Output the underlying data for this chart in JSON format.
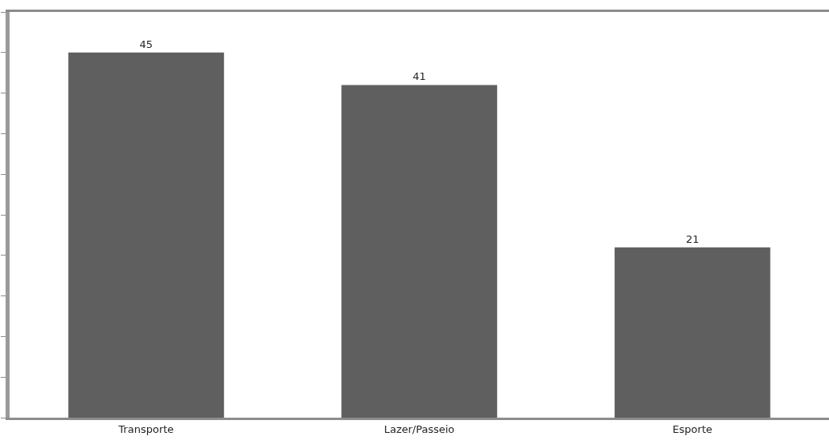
{
  "chart_data": {
    "type": "bar",
    "categories": [
      "Transporte",
      "Lazer/Passeio",
      "Esporte"
    ],
    "values": [
      45,
      41,
      21
    ],
    "color": "#5f5f5f",
    "ylim": [
      0,
      50
    ],
    "yticks": [
      {
        "value": 0,
        "label": null
      },
      {
        "value": 5,
        "label": null
      },
      {
        "value": 10,
        "label": null
      },
      {
        "value": 15,
        "label": null
      },
      {
        "value": 20,
        "label": null
      },
      {
        "value": 25,
        "label": null
      },
      {
        "value": 30,
        "label": null
      },
      {
        "value": 35,
        "label": null
      },
      {
        "value": 40,
        "label": null
      },
      {
        "value": 45,
        "label": null
      },
      {
        "value": 50,
        "label": null
      }
    ],
    "tick_labels": "x",
    "data_labels": true
  }
}
